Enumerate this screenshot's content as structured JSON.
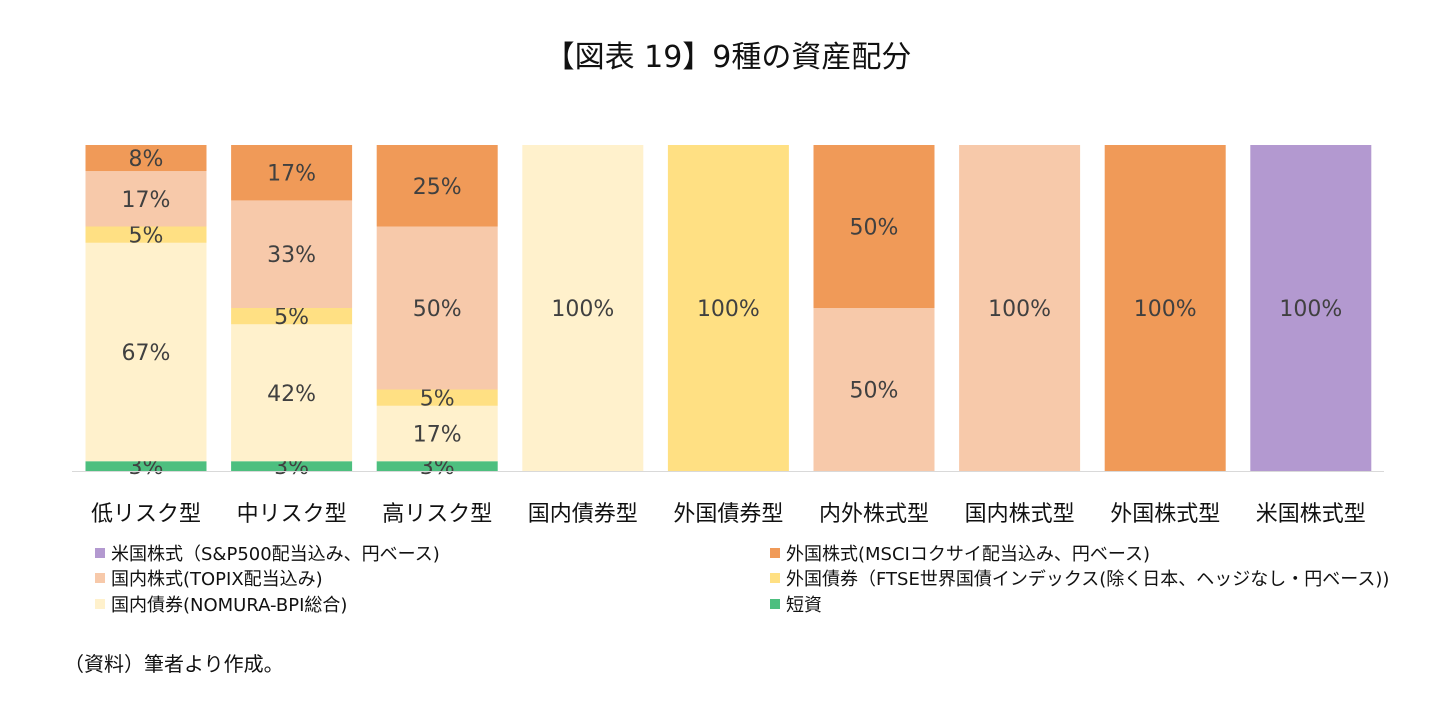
{
  "title": "【図表 19】9種の資産配分",
  "source": "（資料）筆者より作成。",
  "chart_data": {
    "type": "bar",
    "stacked": true,
    "categories": [
      "低リスク型",
      "中リスク型",
      "高リスク型",
      "国内債券型",
      "外国債券型",
      "内外株式型",
      "国内株式型",
      "外国株式型",
      "米国株式型"
    ],
    "ylim": [
      0,
      100
    ],
    "grid": false,
    "legend_position": "bottom",
    "series": [
      {
        "key": "short",
        "name": "短資",
        "color": "#4dbf7f",
        "values": [
          3,
          3,
          3,
          0,
          0,
          0,
          0,
          0,
          0
        ]
      },
      {
        "key": "dom_bond",
        "name": "国内債券(NOMURA-BPI総合)",
        "color": "#fff1cc",
        "values": [
          67,
          42,
          17,
          100,
          0,
          0,
          0,
          0,
          0
        ]
      },
      {
        "key": "for_bond",
        "name": "外国債券（FTSE世界国債インデックス(除く日本、ヘッジなし・円ベース))",
        "color": "#ffe083",
        "values": [
          5,
          5,
          5,
          0,
          100,
          0,
          0,
          0,
          0
        ]
      },
      {
        "key": "dom_stock",
        "name": "国内株式(TOPIX配当込み)",
        "color": "#f7c9aa",
        "values": [
          17,
          33,
          50,
          0,
          0,
          50,
          100,
          0,
          0
        ]
      },
      {
        "key": "for_stock",
        "name": "外国株式(MSCIコクサイ配当込み、円ベース)",
        "color": "#f09a58",
        "values": [
          8,
          17,
          25,
          0,
          0,
          50,
          0,
          100,
          0
        ]
      },
      {
        "key": "us_stock",
        "name": "米国株式（S&P500配当込み、円ベース)",
        "color": "#b399d0",
        "values": [
          0,
          0,
          0,
          0,
          0,
          0,
          0,
          0,
          100
        ]
      }
    ],
    "data_labels": [
      [
        "3%",
        "67%",
        "5%",
        "17%",
        "8%",
        ""
      ],
      [
        "3%",
        "42%",
        "5%",
        "33%",
        "17%",
        ""
      ],
      [
        "3%",
        "17%",
        "5%",
        "50%",
        "25%",
        ""
      ],
      [
        "",
        "100%",
        "",
        "",
        "",
        ""
      ],
      [
        "",
        "",
        "100%",
        "",
        "",
        ""
      ],
      [
        "",
        "",
        "",
        "50%",
        "50%",
        ""
      ],
      [
        "",
        "",
        "",
        "100%",
        "",
        ""
      ],
      [
        "",
        "",
        "",
        "",
        "100%",
        ""
      ],
      [
        "",
        "",
        "",
        "",
        "",
        "100%"
      ]
    ]
  },
  "legend": [
    {
      "series": "us_stock",
      "label": "米国株式（S&P500配当込み、円ベース)",
      "color": "#b399d0"
    },
    {
      "series": "for_stock",
      "label": "外国株式(MSCIコクサイ配当込み、円ベース)",
      "color": "#f09a58"
    },
    {
      "series": "dom_stock",
      "label": "国内株式(TOPIX配当込み)",
      "color": "#f7c9aa"
    },
    {
      "series": "for_bond",
      "label": "外国債券（FTSE世界国債インデックス(除く日本、ヘッジなし・円ベース))",
      "color": "#ffe083"
    },
    {
      "series": "dom_bond",
      "label": "国内債券(NOMURA-BPI総合)",
      "color": "#fff1cc"
    },
    {
      "series": "short",
      "label": "短資",
      "color": "#4dbf7f"
    }
  ]
}
